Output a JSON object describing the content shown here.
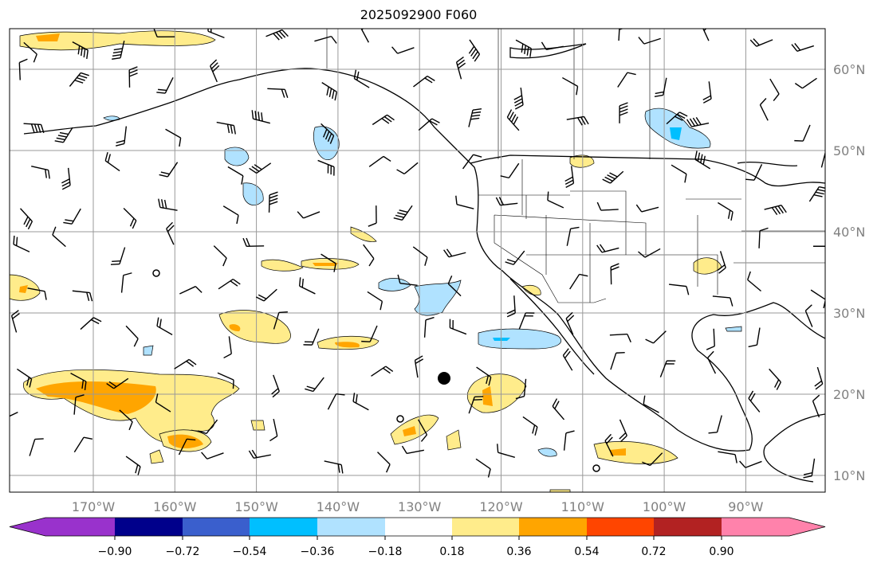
{
  "title": "2025092900 F060",
  "map": {
    "lon_labels": [
      "170°W",
      "160°W",
      "150°W",
      "140°W",
      "130°W",
      "120°W",
      "110°W",
      "100°W",
      "90°W"
    ],
    "lat_labels": [
      "60°N",
      "50°N",
      "40°N",
      "30°N",
      "20°N",
      "10°N"
    ]
  },
  "colorbar": {
    "colors": [
      "#9932cc",
      "#00008b",
      "#3a5fcd",
      "#00bfff",
      "#b0e2ff",
      "#ffffff",
      "#ffec8b",
      "#ffa500",
      "#ff4500",
      "#b22222",
      "#ff82ab"
    ],
    "ticks": [
      "−0.90",
      "−0.72",
      "−0.54",
      "−0.36",
      "−0.18",
      "0.18",
      "0.36",
      "0.54",
      "0.72",
      "0.90"
    ]
  }
}
